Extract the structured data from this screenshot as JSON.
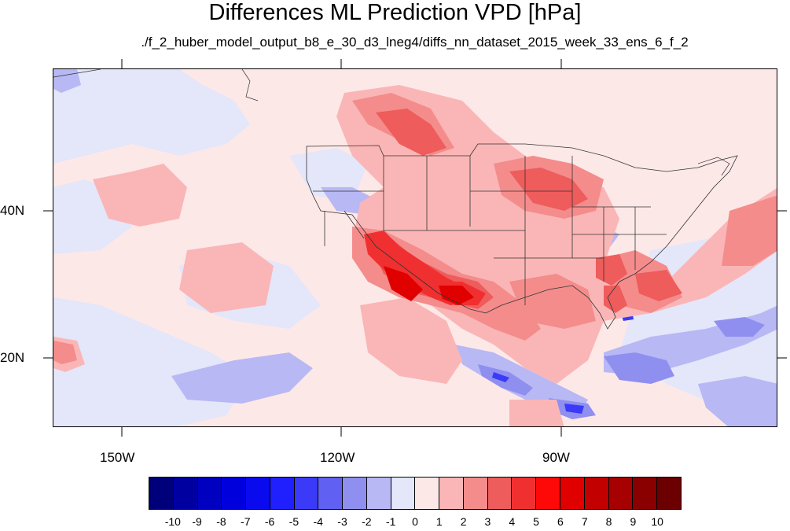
{
  "title": "Differences ML Prediction VPD [hPa]",
  "subtitle": "./f_2_huber_model_output_b8_e_30_d3_lneg4/diffs_nn_dataset_2015_week_33_ens_6_f_2",
  "lat_labels": [
    "40N",
    "20N"
  ],
  "lon_labels": [
    "150W",
    "120W",
    "90W"
  ],
  "colorbar": {
    "labels": [
      "-10",
      "-9",
      "-8",
      "-7",
      "-6",
      "-5",
      "-4",
      "-3",
      "-2",
      "-1",
      "0",
      "1",
      "2",
      "3",
      "4",
      "5",
      "6",
      "7",
      "8",
      "9",
      "10"
    ],
    "colors": [
      "#00007a",
      "#0000a0",
      "#0000c0",
      "#0000dc",
      "#0a0aee",
      "#2020ff",
      "#3a3af8",
      "#6060f2",
      "#8f8ff0",
      "#b8b8f4",
      "#e4e6fa",
      "#fde8e8",
      "#fab6b6",
      "#f48c8c",
      "#ee5c5c",
      "#f03030",
      "#ff0808",
      "#e00000",
      "#c20000",
      "#a60000",
      "#8a0000",
      "#6c0000"
    ]
  }
}
